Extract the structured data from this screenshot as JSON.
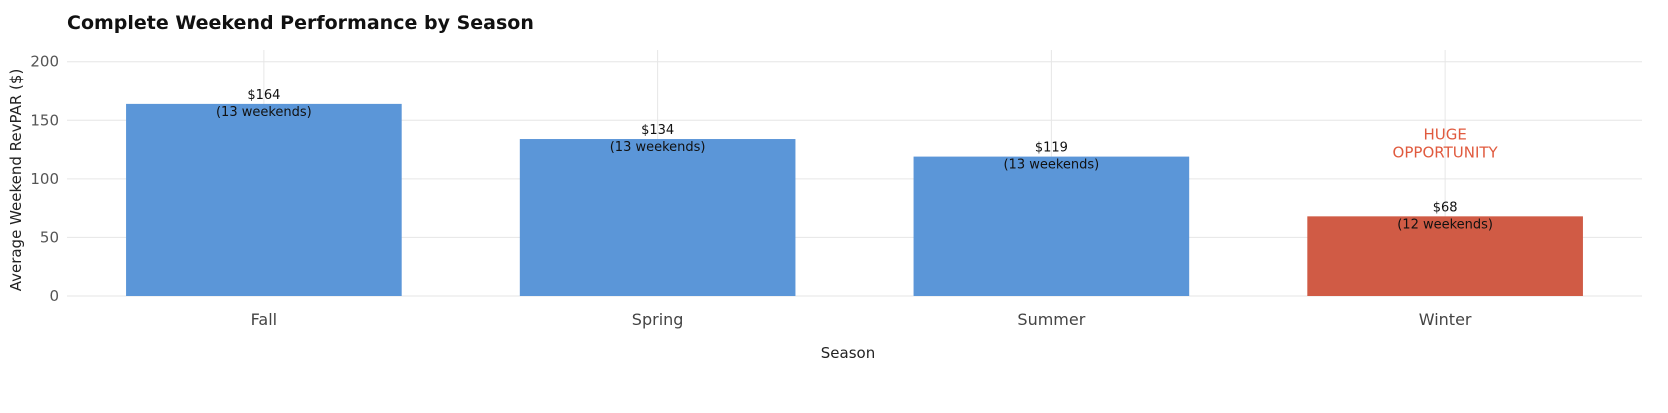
{
  "chart_data": {
    "type": "bar",
    "title": "Complete Weekend Performance by Season",
    "xlabel": "Season",
    "ylabel": "Average Weekend RevPAR ($)",
    "categories": [
      "Fall",
      "Spring",
      "Summer",
      "Winter"
    ],
    "values": [
      164,
      134,
      119,
      68
    ],
    "value_labels": [
      "$164",
      "$134",
      "$119",
      "$68"
    ],
    "count_labels": [
      "(13 weekends)",
      "(13 weekends)",
      "(13 weekends)",
      "(12 weekends)"
    ],
    "bar_colors": [
      "#5b96d8",
      "#5b96d8",
      "#5b96d8",
      "#d05b45"
    ],
    "ylim": [
      0,
      210
    ],
    "yticks": [
      0,
      50,
      100,
      150,
      200
    ],
    "grid": true,
    "legend": "none",
    "annotations": [
      {
        "category": "Winter",
        "lines": [
          "HUGE",
          "OPPORTUNITY"
        ],
        "value": 130,
        "color": "#e05a3e"
      }
    ]
  }
}
